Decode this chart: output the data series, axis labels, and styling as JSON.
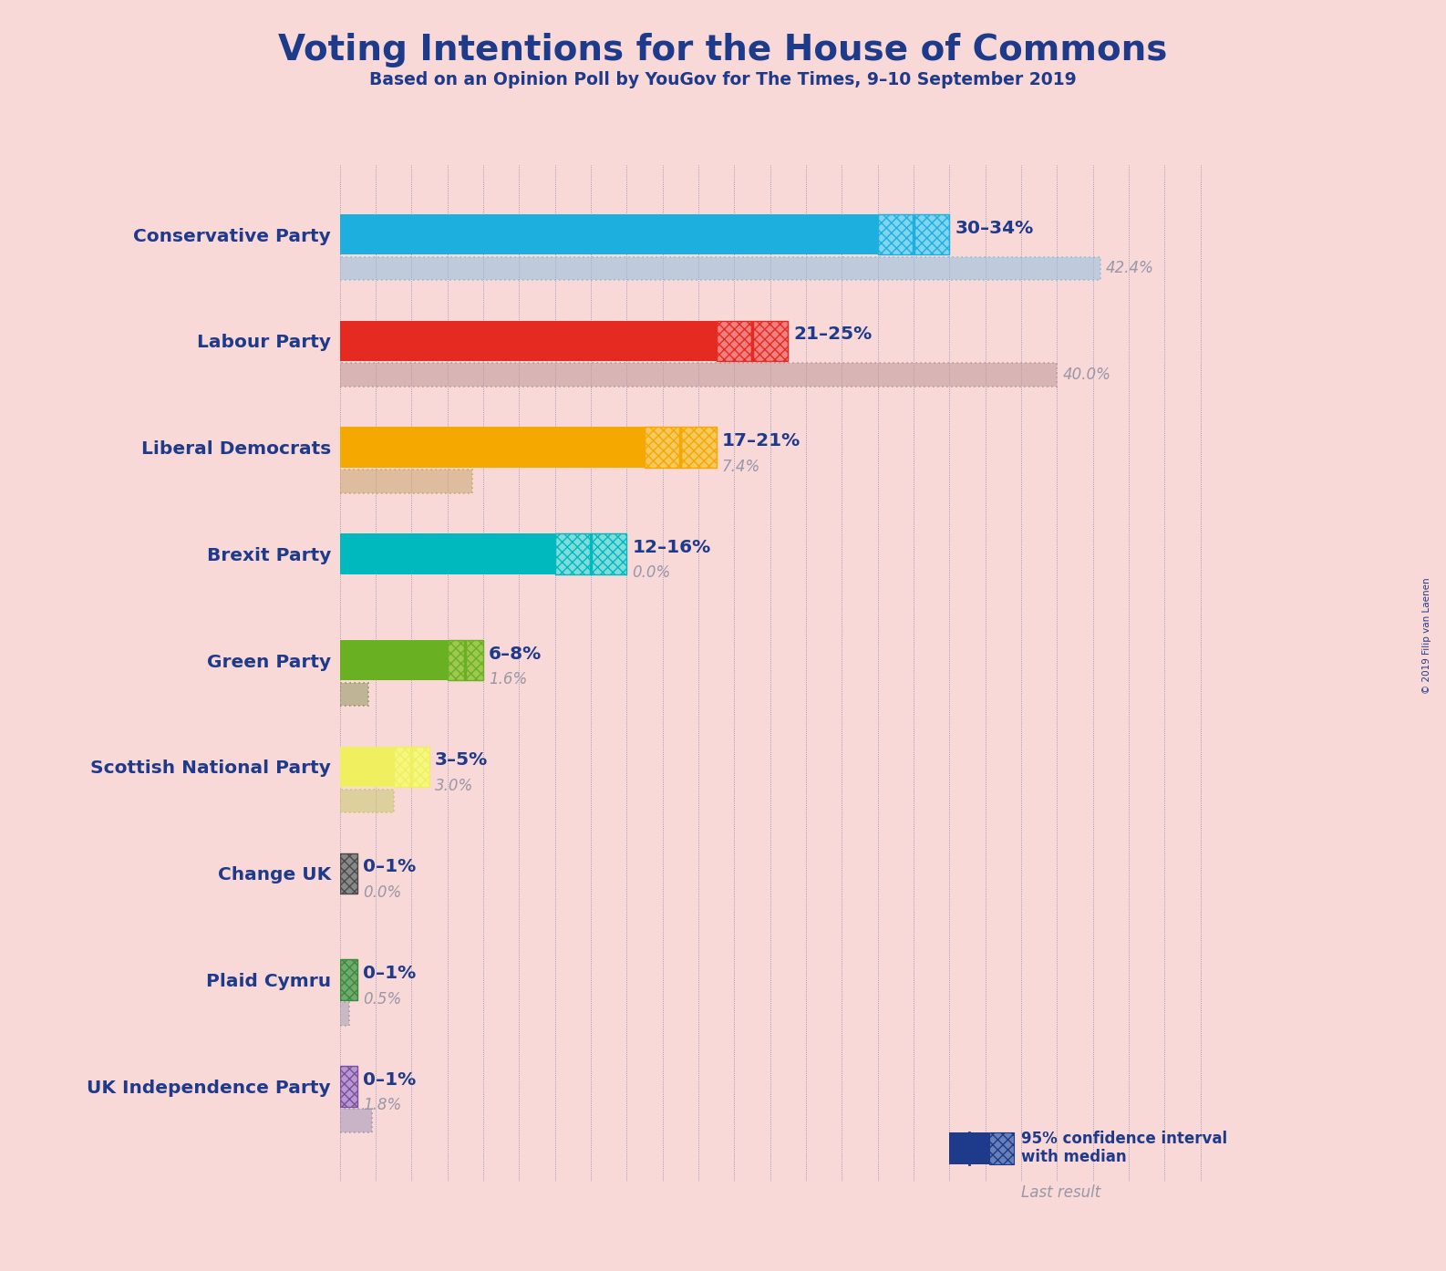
{
  "title": "Voting Intentions for the House of Commons",
  "subtitle": "Based on an Opinion Poll by YouGov for The Times, 9–10 September 2019",
  "background_color": "#F9D8D8",
  "parties": [
    "Conservative Party",
    "Labour Party",
    "Liberal Democrats",
    "Brexit Party",
    "Green Party",
    "Scottish National Party",
    "Change UK",
    "Plaid Cymru",
    "UK Independence Party"
  ],
  "bar_low": [
    30,
    21,
    17,
    12,
    6,
    3,
    0,
    0,
    0
  ],
  "bar_high": [
    34,
    25,
    21,
    16,
    8,
    5,
    1,
    1,
    1
  ],
  "bar_median": [
    32,
    23,
    19,
    14,
    7,
    4,
    0.5,
    0.5,
    0.5
  ],
  "last_result": [
    42.4,
    40.0,
    7.4,
    0.0,
    1.6,
    3.0,
    0.0,
    0.5,
    1.8
  ],
  "ci_labels": [
    "30–34%",
    "21–25%",
    "17–21%",
    "12–16%",
    "6–8%",
    "3–5%",
    "0–1%",
    "0–1%",
    "0–1%"
  ],
  "last_labels": [
    "42.4%",
    "40.0%",
    "7.4%",
    "0.0%",
    "1.6%",
    "3.0%",
    "0.0%",
    "0.5%",
    "1.8%"
  ],
  "bar_solid_colors": [
    "#1DB0DE",
    "#E52B21",
    "#F5A800",
    "#00B9BE",
    "#6AB023",
    "#EFEF60",
    "#4A4A4A",
    "#3A8A3A",
    "#7B4F9E"
  ],
  "bar_hatch_colors": [
    "#80D4F0",
    "#F08080",
    "#F5C860",
    "#80DCDC",
    "#9EC850",
    "#F5F880",
    "#888888",
    "#70AA70",
    "#B898D0"
  ],
  "bar_hatch_edge": [
    "#1DB0DE",
    "#E52B21",
    "#F5A800",
    "#00B9BE",
    "#6AB023",
    "#EFEF60",
    "#4A4A4A",
    "#3A8A3A",
    "#7B4F9E"
  ],
  "last_result_colors": [
    "#90C0DC",
    "#C09898",
    "#C8A870",
    "#80A0B0",
    "#909860",
    "#C8C870",
    "#A0A0A0",
    "#A0A0B0",
    "#A098B8"
  ],
  "title_color": "#1E3A8A",
  "last_label_color": "#9898A8",
  "grid_color": "#1E3A8A",
  "copyright": "© 2019 Filip van Laenen",
  "legend_ci_text": "95% confidence interval\nwith median",
  "legend_last_text": "Last result",
  "xlim_max": 50
}
